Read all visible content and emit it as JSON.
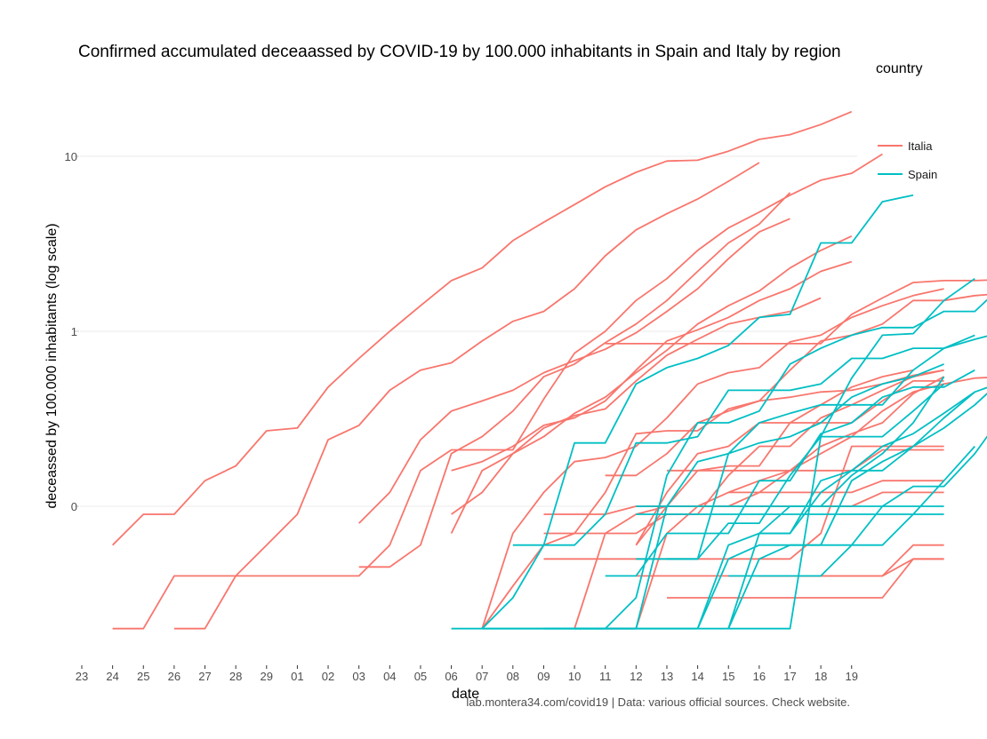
{
  "chart_data": {
    "type": "line",
    "title": "Confirmed accumulated deceaassed by COVID-19 by 100.000 inhabitants in Spain and Italy by region",
    "xlabel": "date",
    "ylabel": "deceassed by 100.000 inhabitants (log scale)",
    "caption": "lab.montera34.com/covid19 | Data: various official sources. Check website.",
    "y_scale": "log10",
    "ylim": [
      0.018,
      22
    ],
    "y_ticks": [
      {
        "value": 10,
        "label": "10"
      },
      {
        "value": 1,
        "label": "1"
      },
      {
        "value": 0.1,
        "label": "0"
      }
    ],
    "x_ticks": [
      "23",
      "24",
      "25",
      "26",
      "27",
      "28",
      "29",
      "01",
      "02",
      "03",
      "04",
      "05",
      "06",
      "07",
      "08",
      "09",
      "10",
      "11",
      "12",
      "13",
      "14",
      "15",
      "16",
      "17",
      "18",
      "19"
    ],
    "grid": true,
    "legend": {
      "title": "country",
      "position": "right",
      "entries": [
        {
          "name": "Italia",
          "color": "#F8766D"
        },
        {
          "name": "Spain",
          "color": "#00BFC4"
        }
      ]
    },
    "series": [
      {
        "country": "Italia",
        "start": 1,
        "values": [
          0.06,
          0.09,
          0.09,
          0.14,
          0.17,
          0.27,
          0.28,
          0.48,
          0.7,
          1.0,
          1.4,
          1.95,
          2.3,
          3.3,
          4.2,
          5.3,
          6.7,
          8.1,
          9.4,
          9.5,
          10.7,
          12.5,
          13.3,
          15.2,
          18.0
        ]
      },
      {
        "country": "Italia",
        "start": 1,
        "values": [
          0.02,
          0.02,
          0.04,
          0.04,
          0.04,
          0.04,
          0.04,
          0.04,
          0.04,
          0.06,
          0.16,
          0.21,
          0.21,
          0.21,
          0.41,
          0.75,
          1.0,
          1.5,
          2.0,
          2.9,
          3.9,
          4.8,
          6.0,
          7.3,
          8.0,
          10.3
        ]
      },
      {
        "country": "Italia",
        "start": 3,
        "values": [
          0.02,
          0.02,
          0.04,
          0.06,
          0.09,
          0.24,
          0.29,
          0.46,
          0.6,
          0.66,
          0.88,
          1.14,
          1.3,
          1.75,
          2.7,
          3.8,
          4.7,
          5.7,
          7.2,
          9.2
        ]
      },
      {
        "country": "Italia",
        "start": 9,
        "values": [
          0.08,
          0.12,
          0.24,
          0.35,
          0.4,
          0.46,
          0.58,
          0.68,
          0.79,
          0.98,
          1.3,
          1.75,
          2.6,
          3.7,
          4.4
        ]
      },
      {
        "country": "Italia",
        "start": 9,
        "values": [
          0.045,
          0.045,
          0.06,
          0.2,
          0.25,
          0.35,
          0.55,
          0.65,
          0.86,
          1.1,
          1.5,
          2.2,
          3.2,
          4.1,
          6.2
        ]
      },
      {
        "country": "Italia",
        "start": 12,
        "values": [
          0.07,
          0.16,
          0.2,
          0.25,
          0.34,
          0.42,
          0.58,
          0.78,
          1.1,
          1.4,
          1.7,
          2.3,
          2.9,
          3.5
        ]
      },
      {
        "country": "Italia",
        "start": 12,
        "values": [
          0.16,
          0.18,
          0.22,
          0.29,
          0.32,
          0.4,
          0.6,
          0.88,
          1.02,
          1.2,
          1.5,
          1.75,
          2.2,
          2.5
        ]
      },
      {
        "country": "Italia",
        "start": 12,
        "values": [
          0.09,
          0.12,
          0.2,
          0.28,
          0.33,
          0.36,
          0.52,
          0.73,
          0.9,
          1.1,
          1.2,
          1.3,
          1.55
        ]
      },
      {
        "country": "Italia",
        "start": 17,
        "values": [
          0.85,
          0.85,
          0.85,
          0.85,
          0.85,
          0.85,
          0.85,
          0.85,
          1.25,
          1.55,
          1.9,
          1.95,
          1.95,
          1.98
        ]
      },
      {
        "country": "Italia",
        "start": 13,
        "values": [
          0.02,
          0.07,
          0.12,
          0.18,
          0.19,
          0.22,
          0.32,
          0.5,
          0.58,
          0.62,
          0.87,
          0.95,
          1.2,
          1.4,
          1.6,
          1.75
        ]
      },
      {
        "country": "Italia",
        "start": 17,
        "values": [
          0.15,
          0.15,
          0.2,
          0.3,
          0.35,
          0.4,
          0.6,
          0.88,
          0.95,
          1.1,
          1.5,
          1.5,
          1.6,
          1.65
        ]
      },
      {
        "country": "Italia",
        "start": 16,
        "values": [
          0.02,
          0.07,
          0.09,
          0.1,
          0.1,
          0.1,
          0.12,
          0.16,
          0.2,
          0.25,
          0.35,
          0.45,
          0.5,
          0.54,
          0.55
        ]
      },
      {
        "country": "Italia",
        "start": 13,
        "values": [
          0.02,
          0.035,
          0.06,
          0.07,
          0.12,
          0.26,
          0.27,
          0.27,
          0.36,
          0.4,
          0.42,
          0.45,
          0.46,
          0.5,
          0.56,
          0.6
        ]
      },
      {
        "country": "Italia",
        "start": 15,
        "values": [
          0.07,
          0.07,
          0.07,
          0.07,
          0.09,
          0.09,
          0.15,
          0.22,
          0.22,
          0.32,
          0.38,
          0.46,
          0.55,
          0.6
        ]
      },
      {
        "country": "Italia",
        "start": 18,
        "values": [
          0.06,
          0.1,
          0.16,
          0.17,
          0.17,
          0.3,
          0.38,
          0.48,
          0.55,
          0.6
        ]
      },
      {
        "country": "Italia",
        "start": 15,
        "values": [
          0.09,
          0.09,
          0.09,
          0.1,
          0.1,
          0.1,
          0.12,
          0.14,
          0.16,
          0.22,
          0.26,
          0.3,
          0.44,
          0.55
        ]
      },
      {
        "country": "Italia",
        "start": 18,
        "values": [
          0.06,
          0.12,
          0.2,
          0.22,
          0.3,
          0.3,
          0.3,
          0.3,
          0.4,
          0.52,
          0.52
        ]
      },
      {
        "country": "Italia",
        "start": 15,
        "values": [
          0.05,
          0.05,
          0.05,
          0.05,
          0.05,
          0.05,
          0.05,
          0.05,
          0.05,
          0.07,
          0.22,
          0.22,
          0.22,
          0.22
        ]
      },
      {
        "country": "Italia",
        "start": 18,
        "values": [
          0.04,
          0.04,
          0.04,
          0.04,
          0.04,
          0.04,
          0.04,
          0.04,
          0.04,
          0.05,
          0.05
        ]
      },
      {
        "country": "Italia",
        "start": 19,
        "values": [
          0.16,
          0.16,
          0.16,
          0.16,
          0.16,
          0.16,
          0.16,
          0.21,
          0.21,
          0.21
        ]
      },
      {
        "country": "Italia",
        "start": 21,
        "values": [
          0.12,
          0.12,
          0.12,
          0.12,
          0.12,
          0.14,
          0.14,
          0.14
        ]
      },
      {
        "country": "Italia",
        "start": 17,
        "values": [
          0.02,
          0.02,
          0.07,
          0.1,
          0.1,
          0.1,
          0.1,
          0.1,
          0.1,
          0.12,
          0.12,
          0.12
        ]
      },
      {
        "country": "Italia",
        "start": 22,
        "values": [
          0.04,
          0.04,
          0.04,
          0.04,
          0.04,
          0.06,
          0.06
        ]
      },
      {
        "country": "Italia",
        "start": 19,
        "values": [
          0.03,
          0.03,
          0.03,
          0.03,
          0.03,
          0.03,
          0.03,
          0.03,
          0.05,
          0.05
        ]
      },
      {
        "country": "Spain",
        "start": 13,
        "values": [
          0.02,
          0.03,
          0.06,
          0.23,
          0.23,
          0.5,
          0.62,
          0.7,
          0.83,
          1.2,
          1.25,
          3.2,
          3.2,
          5.5,
          6.0
        ]
      },
      {
        "country": "Spain",
        "start": 13,
        "values": [
          0.02,
          0.02,
          0.02,
          0.02,
          0.02,
          0.02,
          0.02,
          0.02,
          0.02,
          0.02,
          0.02,
          0.25,
          0.54,
          0.95,
          0.97,
          1.5,
          2.0
        ]
      },
      {
        "country": "Spain",
        "start": 12,
        "values": [
          0.02,
          0.02,
          0.02,
          0.02,
          0.02,
          0.02,
          0.03,
          0.15,
          0.3,
          0.3,
          0.35,
          0.65,
          0.8,
          0.95,
          1.05,
          1.05,
          1.3,
          1.3,
          1.9
        ]
      },
      {
        "country": "Spain",
        "start": 14,
        "values": [
          0.06,
          0.06,
          0.06,
          0.09,
          0.23,
          0.23,
          0.25,
          0.46,
          0.46,
          0.46,
          0.5,
          0.7,
          0.7,
          0.8,
          0.8,
          0.9,
          1.0
        ]
      },
      {
        "country": "Spain",
        "start": 17,
        "values": [
          0.04,
          0.04,
          0.07,
          0.07,
          0.07,
          0.14,
          0.14,
          0.26,
          0.3,
          0.42,
          0.48,
          0.48,
          0.6
        ]
      },
      {
        "country": "Spain",
        "start": 15,
        "values": [
          0.02,
          0.02,
          0.02,
          0.02,
          0.1,
          0.18,
          0.2,
          0.3,
          0.34,
          0.38,
          0.38,
          0.38,
          0.6,
          0.8,
          0.95
        ]
      },
      {
        "country": "Spain",
        "start": 18,
        "values": [
          0.05,
          0.05,
          0.05,
          0.2,
          0.23,
          0.25,
          0.3,
          0.42,
          0.5,
          0.55,
          0.65
        ]
      },
      {
        "country": "Spain",
        "start": 18,
        "values": [
          0.1,
          0.1,
          0.1,
          0.1,
          0.1,
          0.1,
          0.1,
          0.1,
          0.1,
          0.1,
          0.1
        ]
      },
      {
        "country": "Spain",
        "start": 18,
        "values": [
          0.09,
          0.09,
          0.09,
          0.09,
          0.09,
          0.09,
          0.09,
          0.09,
          0.09,
          0.09,
          0.09
        ]
      },
      {
        "country": "Spain",
        "start": 19,
        "values": [
          0.05,
          0.05,
          0.08,
          0.08,
          0.15,
          0.25,
          0.25,
          0.25,
          0.35,
          0.5
        ]
      },
      {
        "country": "Spain",
        "start": 16,
        "values": [
          0.02,
          0.02,
          0.02,
          0.02,
          0.02,
          0.05,
          0.06,
          0.06,
          0.06,
          0.14,
          0.18,
          0.22,
          0.32,
          0.45,
          0.52
        ]
      },
      {
        "country": "Spain",
        "start": 21,
        "values": [
          0.04,
          0.04,
          0.04,
          0.04,
          0.06,
          0.1,
          0.13,
          0.13,
          0.2,
          0.35
        ]
      },
      {
        "country": "Spain",
        "start": 21,
        "values": [
          0.02,
          0.07,
          0.07,
          0.14,
          0.16,
          0.16,
          0.22,
          0.28,
          0.38,
          0.55
        ]
      },
      {
        "country": "Spain",
        "start": 20,
        "values": [
          0.02,
          0.06,
          0.07,
          0.1,
          0.1,
          0.15,
          0.2,
          0.3,
          0.55
        ]
      },
      {
        "country": "Spain",
        "start": 22,
        "values": [
          0.07,
          0.07,
          0.12,
          0.16,
          0.22,
          0.26,
          0.34,
          0.45
        ]
      },
      {
        "country": "Spain",
        "start": 21,
        "values": [
          0.02,
          0.05,
          0.06,
          0.06,
          0.06,
          0.06,
          0.09,
          0.14,
          0.22
        ]
      }
    ]
  }
}
